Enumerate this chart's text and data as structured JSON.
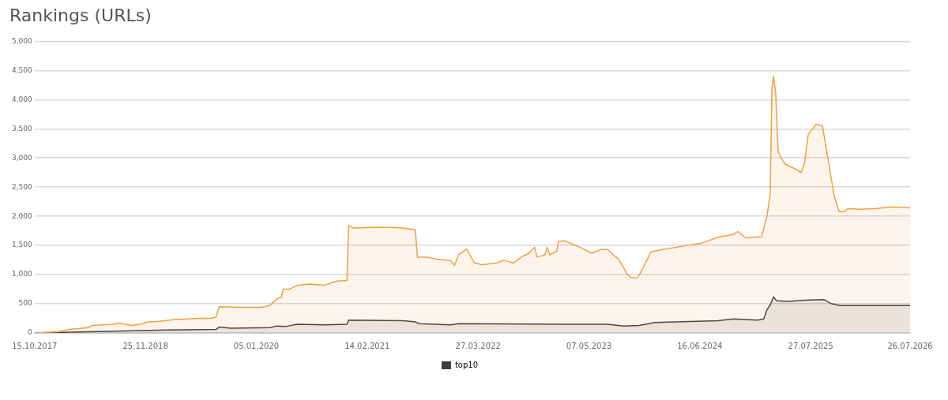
{
  "chart_data": {
    "type": "area",
    "title": "Rankings (URLs)",
    "series": [
      {
        "color": "#f0a041",
        "x": [
          "2017-10-15",
          "2018-01-07",
          "2018-02-20",
          "2018-05-01",
          "2018-05-15",
          "2018-07-26",
          "2018-08-24",
          "2018-09-08",
          "2018-10-07",
          "2018-11-05",
          "2018-12-04",
          "2019-01-16",
          "2019-03-13",
          "2019-04-25",
          "2019-06-08",
          "2019-07-21",
          "2019-08-10",
          "2019-08-22",
          "2019-10-30",
          "2020-01-25",
          "2020-02-23",
          "2020-03-22",
          "2020-04-06",
          "2020-04-12",
          "2020-05-05",
          "2020-06-03",
          "2020-07-16",
          "2020-09-12",
          "2020-10-25",
          "2020-12-02",
          "2020-12-08",
          "2020-12-25",
          "2021-03-03",
          "2021-04-30",
          "2021-06-26",
          "2021-08-09",
          "2021-08-17",
          "2021-09-21",
          "2021-11-03",
          "2021-12-16",
          "2021-12-31",
          "2022-01-15",
          "2022-02-13",
          "2022-03-14",
          "2022-04-10",
          "2022-06-06",
          "2022-06-29",
          "2022-08-03",
          "2022-09-01",
          "2022-09-30",
          "2022-10-20",
          "2022-10-29",
          "2022-11-27",
          "2022-12-05",
          "2022-12-14",
          "2023-01-09",
          "2023-01-15",
          "2023-02-07",
          "2023-04-04",
          "2023-05-17",
          "2023-06-21",
          "2023-07-14",
          "2023-08-26",
          "2023-09-25",
          "2023-10-09",
          "2023-11-01",
          "2023-11-30",
          "2023-12-20",
          "2024-02-01",
          "2024-03-01",
          "2024-04-28",
          "2024-06-24",
          "2024-08-21",
          "2024-10-18",
          "2024-11-02",
          "2024-12-01",
          "2025-01-28",
          "2025-02-17",
          "2025-03-01",
          "2025-03-07",
          "2025-03-13",
          "2025-03-21",
          "2025-03-30",
          "2025-04-23",
          "2025-06-05",
          "2025-06-22",
          "2025-07-04",
          "2025-07-18",
          "2025-08-16",
          "2025-09-08",
          "2025-09-28",
          "2025-10-21",
          "2025-11-08",
          "2025-11-25",
          "2025-12-10",
          "2026-01-22",
          "2026-03-20",
          "2026-05-16",
          "2026-07-26"
        ],
        "values": [
          0,
          20,
          60,
          90,
          130,
          150,
          170,
          150,
          130,
          150,
          190,
          200,
          230,
          240,
          250,
          250,
          270,
          450,
          440,
          440,
          470,
          590,
          610,
          750,
          750,
          820,
          840,
          820,
          890,
          900,
          1840,
          1800,
          1810,
          1810,
          1800,
          1770,
          1300,
          1300,
          1260,
          1240,
          1160,
          1340,
          1440,
          1200,
          1170,
          1200,
          1250,
          1200,
          1300,
          1370,
          1470,
          1300,
          1340,
          1470,
          1340,
          1400,
          1570,
          1580,
          1470,
          1370,
          1430,
          1430,
          1250,
          1000,
          950,
          940,
          1200,
          1390,
          1430,
          1450,
          1500,
          1540,
          1640,
          1690,
          1740,
          1630,
          1650,
          2000,
          2400,
          4200,
          4400,
          4100,
          3100,
          2900,
          2800,
          2750,
          2900,
          3400,
          3580,
          3550,
          3000,
          2350,
          2080,
          2080,
          2130,
          2120,
          2130,
          2160,
          2150
        ]
      },
      {
        "name": "top10",
        "color": "#3d3d3d",
        "x": [
          "2017-10-15",
          "2018-05-01",
          "2019-02-13",
          "2019-08-10",
          "2019-08-22",
          "2019-10-02",
          "2020-02-23",
          "2020-03-22",
          "2020-04-20",
          "2020-06-03",
          "2020-09-12",
          "2020-12-02",
          "2020-12-08",
          "2021-06-26",
          "2021-08-09",
          "2021-08-23",
          "2021-12-16",
          "2022-01-15",
          "2023-01-24",
          "2023-07-14",
          "2023-09-10",
          "2023-11-07",
          "2024-01-04",
          "2024-08-21",
          "2024-10-18",
          "2025-01-14",
          "2025-02-05",
          "2025-02-17",
          "2025-03-01",
          "2025-03-13",
          "2025-03-24",
          "2025-05-07",
          "2025-07-04",
          "2025-09-14",
          "2025-10-12",
          "2025-11-11",
          "2026-07-26"
        ],
        "values": [
          0,
          20,
          50,
          60,
          100,
          80,
          90,
          120,
          110,
          150,
          140,
          150,
          220,
          210,
          190,
          160,
          140,
          160,
          150,
          150,
          120,
          130,
          180,
          210,
          240,
          220,
          240,
          400,
          480,
          620,
          550,
          540,
          560,
          570,
          500,
          470,
          470
        ]
      }
    ],
    "xlim": [
      "2017-10-15",
      "2026-07-26"
    ],
    "xticks": [
      {
        "value": "2017-10-15",
        "label": "15.10.2017"
      },
      {
        "value": "2018-11-25",
        "label": "25.11.2018"
      },
      {
        "value": "2020-01-05",
        "label": "05.01.2020"
      },
      {
        "value": "2021-02-14",
        "label": "14.02.2021"
      },
      {
        "value": "2022-03-27",
        "label": "27.03.2022"
      },
      {
        "value": "2023-05-07",
        "label": "07.05.2023"
      },
      {
        "value": "2024-06-16",
        "label": "16.06.2024"
      },
      {
        "value": "2025-07-27",
        "label": "27.07.2025"
      },
      {
        "value": "2026-07-26",
        "label": "26.07.2026"
      }
    ],
    "ylim": [
      0,
      5000
    ],
    "yticks": [
      0,
      500,
      {
        "value": 1000,
        "label": "1,000"
      },
      {
        "value": 1500,
        "label": "1,500"
      },
      {
        "value": 2000,
        "label": "2,000"
      },
      {
        "value": 2500,
        "label": "2,500"
      },
      {
        "value": 3000,
        "label": "3,000"
      },
      {
        "value": 3500,
        "label": "3,500"
      },
      {
        "value": 4000,
        "label": "4,000"
      },
      {
        "value": 4500,
        "label": "4,500"
      },
      {
        "value": 5000,
        "label": "5,000"
      }
    ],
    "grid": "y",
    "legend": "bottom",
    "marker": "none"
  }
}
